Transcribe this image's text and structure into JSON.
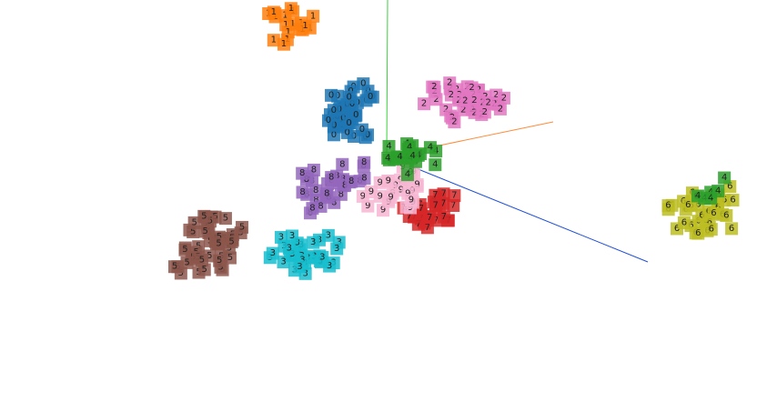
{
  "chart_data": {
    "type": "scatter",
    "title": "",
    "xlabel": "",
    "ylabel": "",
    "axes": {
      "x_color": "#ff8c3a",
      "y_color": "#3ad13a",
      "z_color": "#1f4fd6"
    },
    "series": [
      {
        "digit": "0",
        "color": "#1f77b4",
        "points": [
          [
            -0.35,
            0.55,
            0.1
          ],
          [
            -0.5,
            0.45,
            0.05
          ],
          [
            -0.3,
            0.7,
            0.2
          ],
          [
            -0.45,
            0.6,
            0.0
          ],
          [
            -0.2,
            0.85,
            0.15
          ],
          [
            -0.6,
            0.4,
            -0.05
          ],
          [
            -0.25,
            0.5,
            0.25
          ],
          [
            -0.4,
            0.78,
            0.12
          ]
        ]
      },
      {
        "digit": "1",
        "color": "#ff7f0e",
        "points": [
          [
            -0.9,
            1.9,
            0.3
          ],
          [
            -0.8,
            2.1,
            0.25
          ],
          [
            -1.0,
            1.75,
            0.2
          ],
          [
            -0.85,
            1.6,
            0.35
          ],
          [
            -0.75,
            2.0,
            0.1
          ],
          [
            -0.95,
            2.2,
            0.15
          ],
          [
            -0.7,
            1.8,
            0.4
          ]
        ]
      },
      {
        "digit": "2",
        "color": "#e377c2",
        "points": [
          [
            0.6,
            0.7,
            -0.1
          ],
          [
            0.8,
            0.75,
            0.0
          ],
          [
            0.7,
            0.6,
            0.05
          ],
          [
            0.9,
            0.68,
            -0.05
          ],
          [
            0.5,
            0.78,
            0.1
          ],
          [
            1.0,
            0.62,
            0.0
          ],
          [
            0.65,
            0.82,
            -0.08
          ]
        ]
      },
      {
        "digit": "3",
        "color": "#17becf",
        "points": [
          [
            -0.7,
            -0.95,
            0.3
          ],
          [
            -0.6,
            -1.05,
            0.25
          ],
          [
            -0.8,
            -0.85,
            0.35
          ],
          [
            -0.55,
            -0.9,
            0.2
          ],
          [
            -0.75,
            -1.15,
            0.28
          ],
          [
            -0.9,
            -1.0,
            0.32
          ]
        ]
      },
      {
        "digit": "5",
        "color": "#8c564b",
        "points": [
          [
            -1.6,
            -0.7,
            0.2
          ],
          [
            -1.8,
            -0.8,
            0.15
          ],
          [
            -1.5,
            -0.9,
            0.25
          ],
          [
            -1.9,
            -1.0,
            0.1
          ],
          [
            -1.7,
            -0.6,
            0.3
          ],
          [
            -2.0,
            -1.2,
            0.05
          ],
          [
            -1.4,
            -0.75,
            0.35
          ],
          [
            -1.75,
            -1.1,
            0.18
          ]
        ]
      },
      {
        "digit": "6",
        "color": "#bcbd22",
        "points": [
          [
            2.7,
            -0.65,
            -0.6
          ],
          [
            2.85,
            -0.75,
            -0.65
          ],
          [
            2.6,
            -0.8,
            -0.55
          ],
          [
            2.95,
            -0.6,
            -0.7
          ],
          [
            2.75,
            -0.9,
            -0.5
          ],
          [
            2.9,
            -0.85,
            -0.62
          ]
        ]
      },
      {
        "digit": "7",
        "color": "#d62728",
        "points": [
          [
            0.3,
            -0.55,
            -0.05
          ],
          [
            0.45,
            -0.6,
            0.0
          ],
          [
            0.35,
            -0.7,
            0.05
          ],
          [
            0.5,
            -0.5,
            -0.1
          ],
          [
            0.25,
            -0.62,
            0.02
          ]
        ]
      },
      {
        "digit": "8",
        "color": "#9467bd",
        "points": [
          [
            -0.45,
            -0.1,
            0.2
          ],
          [
            -0.6,
            -0.25,
            0.25
          ],
          [
            -0.3,
            -0.05,
            0.15
          ],
          [
            -0.55,
            -0.4,
            0.3
          ],
          [
            -0.4,
            -0.2,
            0.18
          ],
          [
            -0.7,
            -0.15,
            0.22
          ]
        ]
      },
      {
        "digit": "9",
        "color": "#f7b6d2",
        "points": [
          [
            0.0,
            -0.3,
            0.05
          ],
          [
            0.15,
            -0.2,
            0.0
          ],
          [
            -0.1,
            -0.4,
            0.1
          ],
          [
            0.1,
            -0.45,
            0.02
          ],
          [
            0.05,
            -0.15,
            -0.05
          ]
        ]
      },
      {
        "digit": "4",
        "color": "#2ca02c",
        "points": [
          [
            0.1,
            0.1,
            -0.1
          ],
          [
            0.2,
            0.0,
            -0.15
          ],
          [
            0.0,
            0.05,
            -0.05
          ],
          [
            0.15,
            -0.05,
            -0.12
          ],
          [
            2.8,
            -0.5,
            -0.7
          ]
        ]
      }
    ],
    "sprite_labels": [
      "0",
      "1",
      "2",
      "3",
      "4",
      "5",
      "6",
      "7",
      "8",
      "9"
    ]
  }
}
